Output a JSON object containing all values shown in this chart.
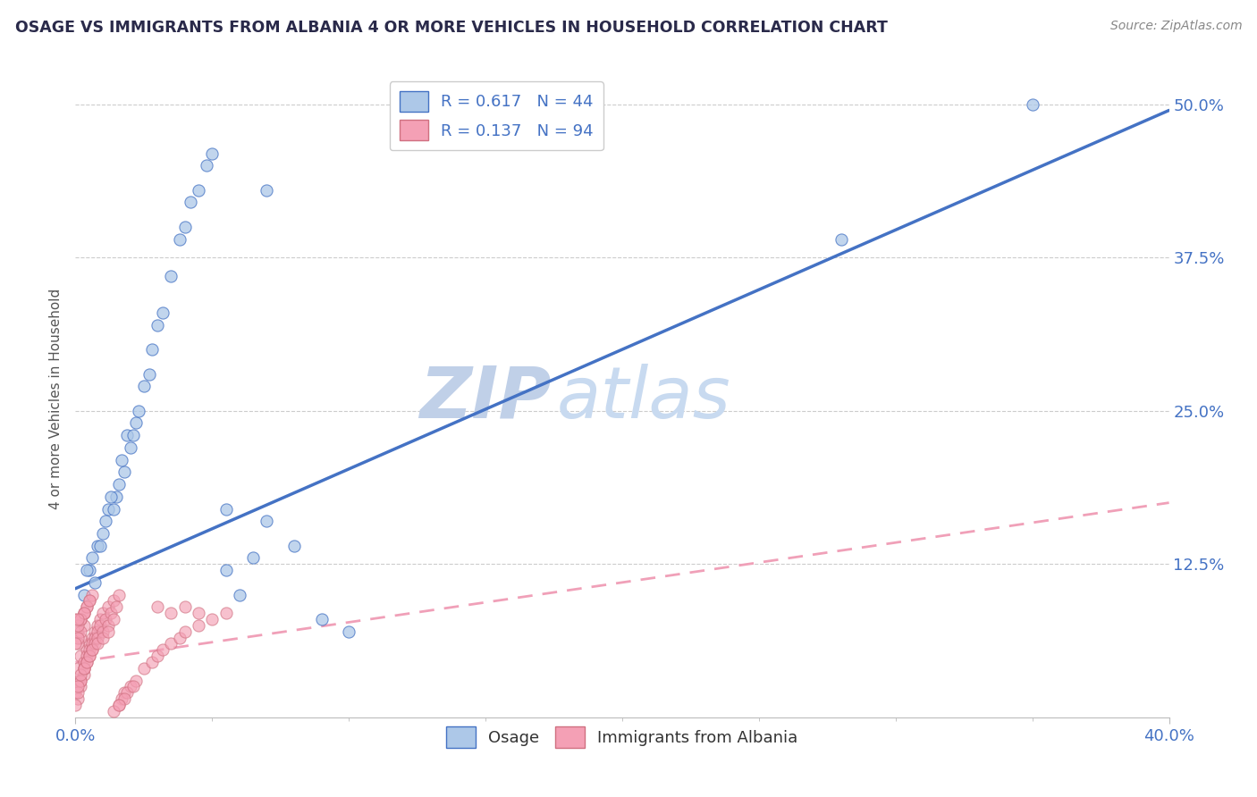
{
  "title": "OSAGE VS IMMIGRANTS FROM ALBANIA 4 OR MORE VEHICLES IN HOUSEHOLD CORRELATION CHART",
  "source": "Source: ZipAtlas.com",
  "ylabel": "4 or more Vehicles in Household",
  "yticks": [
    0.0,
    0.125,
    0.25,
    0.375,
    0.5
  ],
  "ytick_labels": [
    "",
    "12.5%",
    "25.0%",
    "37.5%",
    "50.0%"
  ],
  "xlim": [
    0.0,
    0.4
  ],
  "ylim": [
    0.0,
    0.52
  ],
  "legend_labels": [
    "Osage",
    "Immigrants from Albania"
  ],
  "r_osage": 0.617,
  "n_osage": 44,
  "r_albania": 0.137,
  "n_albania": 94,
  "blue_color": "#adc8e8",
  "pink_color": "#f4a0b5",
  "blue_line_color": "#4472c4",
  "pink_line_color": "#f0a0b8",
  "title_color": "#2a2a4a",
  "watermark_zip_color": "#c8d8ec",
  "watermark_atlas_color": "#c8d8ec",
  "background_color": "#ffffff",
  "grid_color": "#cccccc",
  "legend_text_color": "#4472c4",
  "axis_text_color": "#4472c4",
  "ylabel_color": "#555555",
  "source_color": "#888888",
  "osage_points_x": [
    0.005,
    0.008,
    0.003,
    0.006,
    0.01,
    0.012,
    0.007,
    0.009,
    0.004,
    0.015,
    0.018,
    0.011,
    0.013,
    0.016,
    0.02,
    0.022,
    0.014,
    0.017,
    0.019,
    0.025,
    0.023,
    0.021,
    0.028,
    0.03,
    0.027,
    0.032,
    0.035,
    0.038,
    0.04,
    0.042,
    0.045,
    0.048,
    0.05,
    0.055,
    0.06,
    0.065,
    0.07,
    0.08,
    0.09,
    0.1,
    0.055,
    0.07,
    0.35,
    0.28
  ],
  "osage_points_y": [
    0.12,
    0.14,
    0.1,
    0.13,
    0.15,
    0.17,
    0.11,
    0.14,
    0.12,
    0.18,
    0.2,
    0.16,
    0.18,
    0.19,
    0.22,
    0.24,
    0.17,
    0.21,
    0.23,
    0.27,
    0.25,
    0.23,
    0.3,
    0.32,
    0.28,
    0.33,
    0.36,
    0.39,
    0.4,
    0.42,
    0.43,
    0.45,
    0.46,
    0.12,
    0.1,
    0.13,
    0.16,
    0.14,
    0.08,
    0.07,
    0.17,
    0.43,
    0.5,
    0.39
  ],
  "albania_points_x": [
    0.0,
    0.001,
    0.002,
    0.001,
    0.003,
    0.002,
    0.001,
    0.0,
    0.003,
    0.002,
    0.001,
    0.004,
    0.003,
    0.002,
    0.005,
    0.004,
    0.003,
    0.001,
    0.006,
    0.005,
    0.004,
    0.002,
    0.007,
    0.006,
    0.005,
    0.003,
    0.008,
    0.007,
    0.006,
    0.004,
    0.009,
    0.008,
    0.007,
    0.005,
    0.01,
    0.009,
    0.008,
    0.006,
    0.012,
    0.011,
    0.01,
    0.008,
    0.014,
    0.013,
    0.012,
    0.01,
    0.016,
    0.015,
    0.014,
    0.012,
    0.018,
    0.017,
    0.016,
    0.014,
    0.02,
    0.019,
    0.018,
    0.016,
    0.022,
    0.021,
    0.0,
    0.001,
    0.002,
    0.001,
    0.003,
    0.002,
    0.001,
    0.0,
    0.003,
    0.002,
    0.001,
    0.004,
    0.003,
    0.002,
    0.005,
    0.004,
    0.003,
    0.001,
    0.006,
    0.005,
    0.025,
    0.028,
    0.03,
    0.032,
    0.035,
    0.038,
    0.04,
    0.045,
    0.05,
    0.055,
    0.03,
    0.035,
    0.04,
    0.045
  ],
  "albania_points_y": [
    0.02,
    0.03,
    0.025,
    0.04,
    0.035,
    0.05,
    0.015,
    0.01,
    0.045,
    0.03,
    0.02,
    0.055,
    0.04,
    0.03,
    0.06,
    0.05,
    0.04,
    0.025,
    0.065,
    0.055,
    0.045,
    0.035,
    0.07,
    0.06,
    0.05,
    0.04,
    0.075,
    0.065,
    0.055,
    0.045,
    0.08,
    0.07,
    0.06,
    0.05,
    0.085,
    0.075,
    0.065,
    0.055,
    0.09,
    0.08,
    0.07,
    0.06,
    0.095,
    0.085,
    0.075,
    0.065,
    0.1,
    0.09,
    0.08,
    0.07,
    0.02,
    0.015,
    0.01,
    0.005,
    0.025,
    0.02,
    0.015,
    0.01,
    0.03,
    0.025,
    0.08,
    0.07,
    0.065,
    0.06,
    0.075,
    0.07,
    0.065,
    0.06,
    0.085,
    0.08,
    0.075,
    0.09,
    0.085,
    0.08,
    0.095,
    0.09,
    0.085,
    0.08,
    0.1,
    0.095,
    0.04,
    0.045,
    0.05,
    0.055,
    0.06,
    0.065,
    0.07,
    0.075,
    0.08,
    0.085,
    0.09,
    0.085,
    0.09,
    0.085
  ],
  "blue_trend_x0": 0.0,
  "blue_trend_y0": 0.105,
  "blue_trend_x1": 0.4,
  "blue_trend_y1": 0.495,
  "pink_trend_x0": 0.0,
  "pink_trend_y0": 0.045,
  "pink_trend_x1": 0.4,
  "pink_trend_y1": 0.175
}
